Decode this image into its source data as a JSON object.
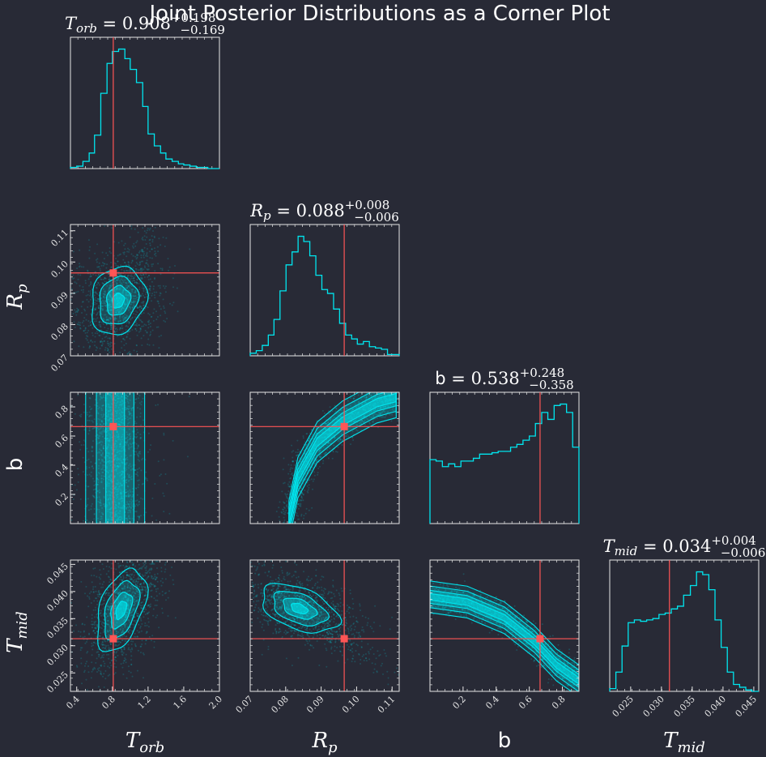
{
  "chart_data": {
    "type": "corner",
    "title": "Joint Posterior Distributions as a Corner Plot",
    "colors": {
      "background": "#282a36",
      "samples": "#00e5ee",
      "truth": "#ff5555",
      "frame": "#e6e6e6"
    },
    "parameters": [
      {
        "key": "T_orb",
        "label_base": "T",
        "label_sub": "orb",
        "label_italic": true,
        "median": "0.908",
        "plus": "+0.198",
        "minus": "−0.169",
        "range": [
          0.33,
          2.0
        ],
        "ticks": [
          0.4,
          0.8,
          1.2,
          1.6,
          2.0
        ],
        "tick_labels": [
          "0.4",
          "0.8",
          "1.2",
          "1.6",
          "2.0"
        ],
        "truth": 0.81,
        "hist": {
          "edges": [
            0.33,
            0.4,
            0.47,
            0.54,
            0.6,
            0.67,
            0.74,
            0.8,
            0.87,
            0.94,
            1.0,
            1.07,
            1.14,
            1.2,
            1.27,
            1.34,
            1.4,
            1.47,
            1.54,
            1.6,
            1.67,
            1.74,
            1.8,
            1.87,
            2.0
          ],
          "counts": [
            1,
            2,
            6,
            13,
            28,
            63,
            88,
            98,
            100,
            92,
            83,
            72,
            52,
            29,
            19,
            13,
            8,
            6,
            4,
            3,
            2,
            1,
            1,
            0
          ]
        }
      },
      {
        "key": "R_p",
        "label_base": "R",
        "label_sub": "p",
        "label_italic": true,
        "median": "0.088",
        "plus": "+0.008",
        "minus": "−0.006",
        "range": [
          0.07,
          0.112
        ],
        "ticks": [
          0.07,
          0.08,
          0.09,
          0.1,
          0.11
        ],
        "tick_labels": [
          "0.07",
          "0.08",
          "0.09",
          "0.10",
          "0.11"
        ],
        "truth": 0.0965,
        "hist": {
          "edges": [
            0.07,
            0.0717,
            0.0734,
            0.0751,
            0.0767,
            0.0784,
            0.0801,
            0.0818,
            0.0835,
            0.0851,
            0.0868,
            0.0885,
            0.0902,
            0.0918,
            0.0935,
            0.0952,
            0.0969,
            0.0986,
            0.1002,
            0.1019,
            0.1036,
            0.1053,
            0.107,
            0.1087,
            0.112
          ],
          "counts": [
            2,
            4,
            8,
            16,
            28,
            50,
            70,
            80,
            92,
            88,
            77,
            62,
            51,
            48,
            36,
            25,
            16,
            13,
            9,
            11,
            7,
            6,
            5,
            1
          ]
        }
      },
      {
        "key": "b",
        "label_base": "b",
        "label_sub": "",
        "label_italic": false,
        "median": "0.538",
        "plus": "+0.248",
        "minus": "−0.358",
        "range": [
          0.0,
          0.9
        ],
        "ticks": [
          0.2,
          0.4,
          0.6,
          0.8
        ],
        "tick_labels": [
          "0.2",
          "0.4",
          "0.6",
          "0.8"
        ],
        "truth": 0.665,
        "hist": {
          "edges": [
            0.0,
            0.037,
            0.075,
            0.112,
            0.15,
            0.187,
            0.225,
            0.262,
            0.3,
            0.337,
            0.375,
            0.412,
            0.45,
            0.487,
            0.525,
            0.562,
            0.6,
            0.637,
            0.675,
            0.712,
            0.75,
            0.787,
            0.825,
            0.862,
            0.9
          ],
          "counts": [
            46,
            45,
            41,
            43,
            41,
            45,
            45,
            47,
            50,
            50,
            51,
            52,
            52,
            55,
            57,
            60,
            63,
            72,
            80,
            75,
            85,
            86,
            80,
            55
          ]
        }
      },
      {
        "key": "T_mid",
        "label_base": "T",
        "label_sub": "mid",
        "label_italic": true,
        "median": "0.034",
        "plus": "+0.004",
        "minus": "−0.006",
        "range": [
          0.0216,
          0.0458
        ],
        "ticks": [
          0.025,
          0.03,
          0.035,
          0.04,
          0.045
        ],
        "tick_labels": [
          "0.025",
          "0.030",
          "0.035",
          "0.040",
          "0.045"
        ],
        "truth": 0.0313,
        "hist": {
          "edges": [
            0.0216,
            0.0226,
            0.0236,
            0.0246,
            0.0256,
            0.0266,
            0.0276,
            0.0286,
            0.0296,
            0.0306,
            0.0316,
            0.0326,
            0.0336,
            0.0347,
            0.0357,
            0.0367,
            0.0377,
            0.0387,
            0.0397,
            0.0407,
            0.0417,
            0.0427,
            0.0437,
            0.0447,
            0.0458
          ],
          "counts": [
            2,
            14,
            33,
            50,
            52,
            51,
            52,
            53,
            56,
            57,
            60,
            62,
            70,
            77,
            87,
            85,
            74,
            52,
            32,
            14,
            5,
            3,
            1,
            0
          ]
        }
      }
    ],
    "contour_levels": [
      "0.5σ",
      "1σ",
      "1.5σ",
      "2σ"
    ]
  }
}
